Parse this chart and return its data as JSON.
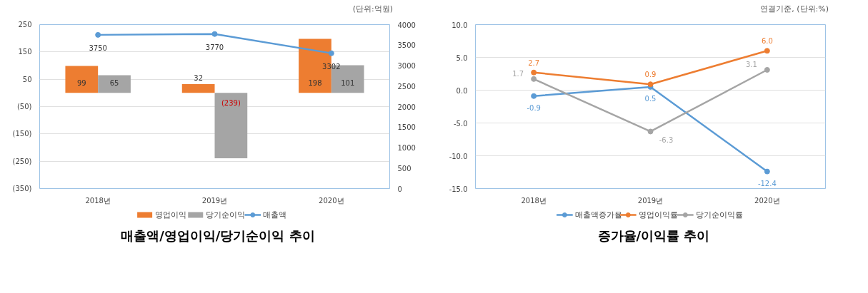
{
  "chart_data": [
    {
      "type": "bar",
      "title": "매출액/영업이익/당기순이익 추이",
      "annotations": [
        "(단위:억원)"
      ],
      "categories": [
        "2018년",
        "2019년",
        "2020년"
      ],
      "series": [
        {
          "name": "영업이익",
          "color": "#ed7d31",
          "values": [
            99,
            32,
            198
          ],
          "value_labels": [
            "99",
            "32",
            "198"
          ]
        },
        {
          "name": "당기순이익",
          "color": "#a5a5a5",
          "values": [
            65,
            -239,
            101
          ],
          "value_labels": [
            "65",
            "(239)",
            "101"
          ]
        },
        {
          "name": "매출액",
          "type": "line",
          "axis": "y2",
          "marker": "circle",
          "color": "#5b9bd5",
          "values": [
            3750,
            3770,
            3302
          ],
          "value_labels": [
            "3750",
            "3770",
            "3302"
          ]
        }
      ],
      "ylim": [
        -350,
        250
      ],
      "yticks": [
        {
          "value": -350,
          "label": "(350)"
        },
        {
          "value": -250,
          "label": "(250)"
        },
        {
          "value": -150,
          "label": "(150)"
        },
        {
          "value": -50,
          "label": "(50)"
        },
        50,
        150,
        250
      ],
      "y2lim": [
        0,
        4000
      ],
      "y2ticks": [
        0,
        500,
        1000,
        1500,
        2000,
        2500,
        3000,
        3500,
        4000
      ],
      "grid": "y",
      "legend": "bottom"
    },
    {
      "type": "line",
      "title": "증가율/이익률 추이",
      "annotations": [
        "연결기준, (단위:%)"
      ],
      "categories": [
        "2018년",
        "2019년",
        "2020년"
      ],
      "series": [
        {
          "name": "매출액증가율",
          "color": "#5b9bd5",
          "values": [
            -0.9,
            0.5,
            -12.4
          ],
          "value_labels": [
            "-0.9",
            "0.5",
            "-12.4"
          ]
        },
        {
          "name": "영업이익률",
          "color": "#ed7d31",
          "values": [
            2.7,
            0.9,
            6.0
          ],
          "value_labels": [
            "2.7",
            "0.9",
            "6.0"
          ]
        },
        {
          "name": "당기순이익률",
          "color": "#a5a5a5",
          "values": [
            1.7,
            -6.3,
            3.1
          ],
          "value_labels": [
            "1.7",
            "-6.3",
            "3.1"
          ]
        }
      ],
      "ylim": [
        -15,
        10
      ],
      "yticks": [
        {
          "value": -15,
          "label": "-15.0"
        },
        {
          "value": -10,
          "label": "-10.0"
        },
        {
          "value": -5,
          "label": "-5.0"
        },
        {
          "value": 0,
          "label": "0.0"
        },
        {
          "value": 5,
          "label": "5.0"
        },
        {
          "value": 10,
          "label": "10.0"
        }
      ],
      "grid": "y",
      "legend": "bottom",
      "marker": "circle"
    }
  ]
}
